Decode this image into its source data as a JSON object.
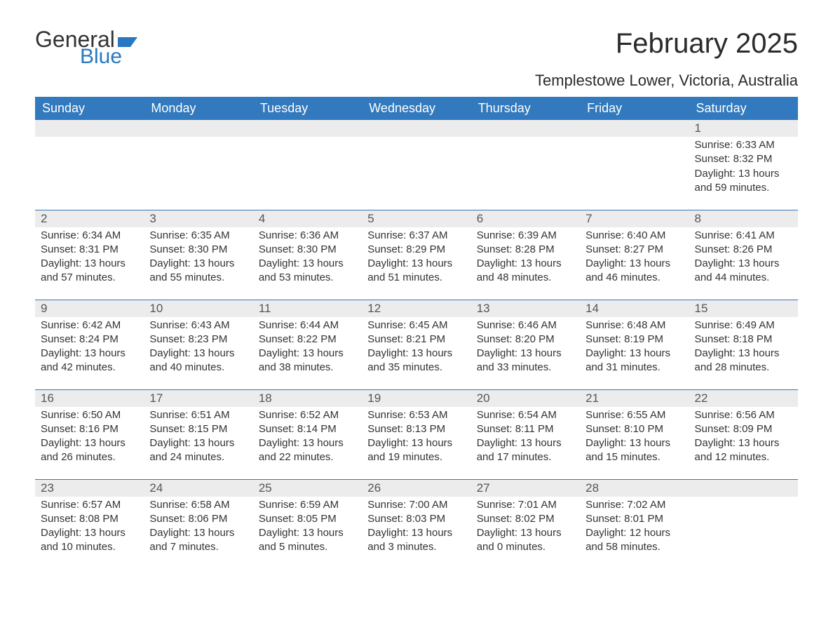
{
  "brand": {
    "word1": "General",
    "word2": "Blue"
  },
  "title": "February 2025",
  "location": "Templestowe Lower, Victoria, Australia",
  "colors": {
    "header_bg": "#3279bd",
    "header_fg": "#ffffff",
    "band_bg": "#ececec",
    "rule": "#3279bd",
    "text": "#333333",
    "brand_blue": "#2a78c2"
  },
  "weekday_labels": [
    "Sunday",
    "Monday",
    "Tuesday",
    "Wednesday",
    "Thursday",
    "Friday",
    "Saturday"
  ],
  "weeks": [
    [
      null,
      null,
      null,
      null,
      null,
      null,
      {
        "n": "1",
        "sr": "6:33 AM",
        "ss": "8:32 PM",
        "dl": "13 hours and 59 minutes."
      }
    ],
    [
      {
        "n": "2",
        "sr": "6:34 AM",
        "ss": "8:31 PM",
        "dl": "13 hours and 57 minutes."
      },
      {
        "n": "3",
        "sr": "6:35 AM",
        "ss": "8:30 PM",
        "dl": "13 hours and 55 minutes."
      },
      {
        "n": "4",
        "sr": "6:36 AM",
        "ss": "8:30 PM",
        "dl": "13 hours and 53 minutes."
      },
      {
        "n": "5",
        "sr": "6:37 AM",
        "ss": "8:29 PM",
        "dl": "13 hours and 51 minutes."
      },
      {
        "n": "6",
        "sr": "6:39 AM",
        "ss": "8:28 PM",
        "dl": "13 hours and 48 minutes."
      },
      {
        "n": "7",
        "sr": "6:40 AM",
        "ss": "8:27 PM",
        "dl": "13 hours and 46 minutes."
      },
      {
        "n": "8",
        "sr": "6:41 AM",
        "ss": "8:26 PM",
        "dl": "13 hours and 44 minutes."
      }
    ],
    [
      {
        "n": "9",
        "sr": "6:42 AM",
        "ss": "8:24 PM",
        "dl": "13 hours and 42 minutes."
      },
      {
        "n": "10",
        "sr": "6:43 AM",
        "ss": "8:23 PM",
        "dl": "13 hours and 40 minutes."
      },
      {
        "n": "11",
        "sr": "6:44 AM",
        "ss": "8:22 PM",
        "dl": "13 hours and 38 minutes."
      },
      {
        "n": "12",
        "sr": "6:45 AM",
        "ss": "8:21 PM",
        "dl": "13 hours and 35 minutes."
      },
      {
        "n": "13",
        "sr": "6:46 AM",
        "ss": "8:20 PM",
        "dl": "13 hours and 33 minutes."
      },
      {
        "n": "14",
        "sr": "6:48 AM",
        "ss": "8:19 PM",
        "dl": "13 hours and 31 minutes."
      },
      {
        "n": "15",
        "sr": "6:49 AM",
        "ss": "8:18 PM",
        "dl": "13 hours and 28 minutes."
      }
    ],
    [
      {
        "n": "16",
        "sr": "6:50 AM",
        "ss": "8:16 PM",
        "dl": "13 hours and 26 minutes."
      },
      {
        "n": "17",
        "sr": "6:51 AM",
        "ss": "8:15 PM",
        "dl": "13 hours and 24 minutes."
      },
      {
        "n": "18",
        "sr": "6:52 AM",
        "ss": "8:14 PM",
        "dl": "13 hours and 22 minutes."
      },
      {
        "n": "19",
        "sr": "6:53 AM",
        "ss": "8:13 PM",
        "dl": "13 hours and 19 minutes."
      },
      {
        "n": "20",
        "sr": "6:54 AM",
        "ss": "8:11 PM",
        "dl": "13 hours and 17 minutes."
      },
      {
        "n": "21",
        "sr": "6:55 AM",
        "ss": "8:10 PM",
        "dl": "13 hours and 15 minutes."
      },
      {
        "n": "22",
        "sr": "6:56 AM",
        "ss": "8:09 PM",
        "dl": "13 hours and 12 minutes."
      }
    ],
    [
      {
        "n": "23",
        "sr": "6:57 AM",
        "ss": "8:08 PM",
        "dl": "13 hours and 10 minutes."
      },
      {
        "n": "24",
        "sr": "6:58 AM",
        "ss": "8:06 PM",
        "dl": "13 hours and 7 minutes."
      },
      {
        "n": "25",
        "sr": "6:59 AM",
        "ss": "8:05 PM",
        "dl": "13 hours and 5 minutes."
      },
      {
        "n": "26",
        "sr": "7:00 AM",
        "ss": "8:03 PM",
        "dl": "13 hours and 3 minutes."
      },
      {
        "n": "27",
        "sr": "7:01 AM",
        "ss": "8:02 PM",
        "dl": "13 hours and 0 minutes."
      },
      {
        "n": "28",
        "sr": "7:02 AM",
        "ss": "8:01 PM",
        "dl": "12 hours and 58 minutes."
      },
      null
    ]
  ],
  "labels": {
    "sunrise": "Sunrise:",
    "sunset": "Sunset:",
    "daylight": "Daylight:"
  }
}
